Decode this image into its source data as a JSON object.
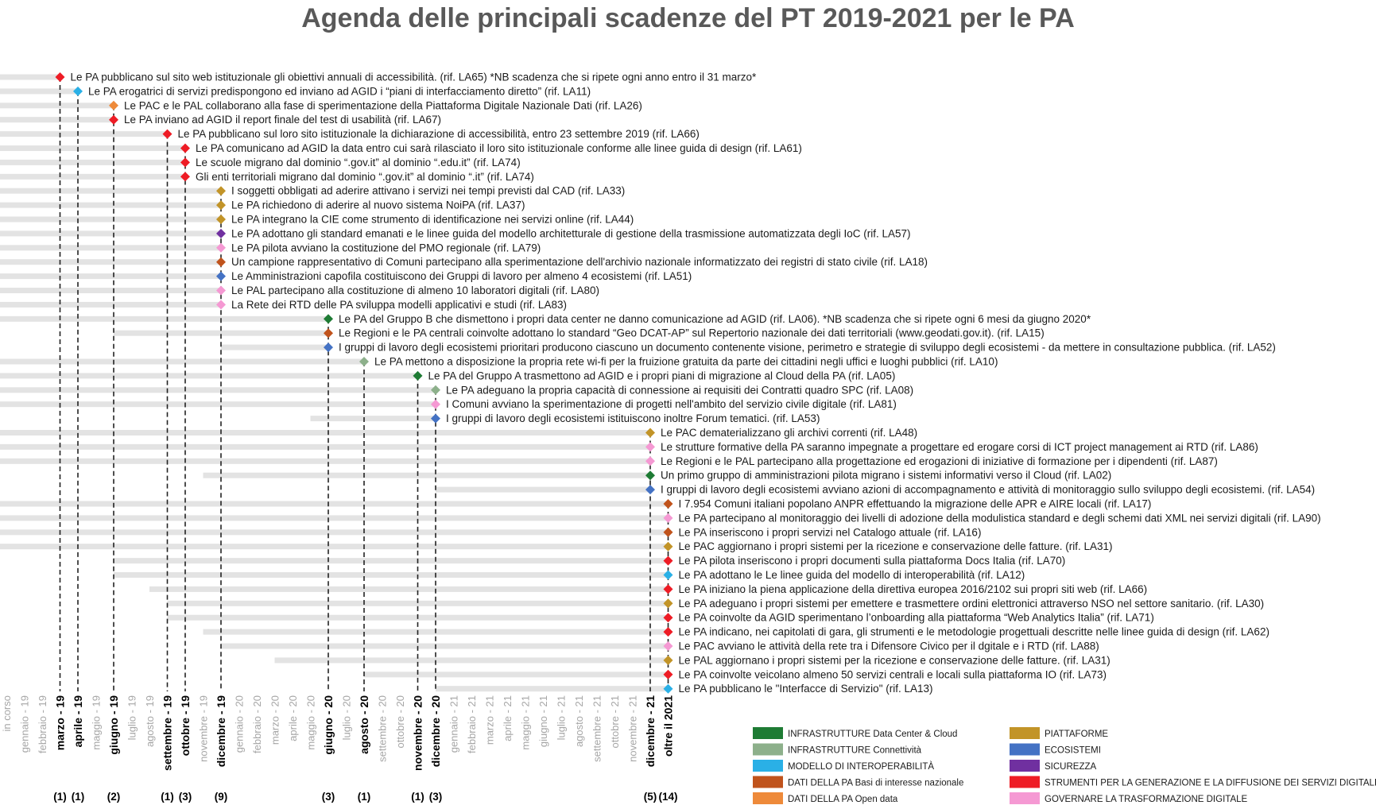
{
  "chart_data": {
    "type": "timeline",
    "title": "Agenda delle principali scadenze del PT 2019-2021 per le PA",
    "months": [
      "in corso",
      "gennaio - 19",
      "febbraio - 19",
      "marzo - 19",
      "aprile - 19",
      "maggio - 19",
      "giugno - 19",
      "luglio - 19",
      "agosto - 19",
      "settembre - 19",
      "ottobre - 19",
      "novembre - 19",
      "dicembre - 19",
      "gennaio - 20",
      "febbraio - 20",
      "marzo - 20",
      "aprile - 20",
      "maggio - 20",
      "giugno - 20",
      "luglio - 20",
      "agosto - 20",
      "settembre - 20",
      "ottobre - 20",
      "novembre - 20",
      "dicembre - 20",
      "gennaio - 21",
      "febbraio - 21",
      "marzo - 21",
      "aprile - 21",
      "maggio - 21",
      "giugno - 21",
      "luglio - 21",
      "agosto - 21",
      "settembre - 21",
      "ottobre - 21",
      "novembre - 21",
      "dicembre - 21",
      "oltre il 2021"
    ],
    "deadlines": [
      {
        "month": "marzo - 19",
        "count": "(1)"
      },
      {
        "month": "aprile - 19",
        "count": "(1)"
      },
      {
        "month": "giugno - 19",
        "count": "(2)"
      },
      {
        "month": "settembre - 19",
        "count": "(1)"
      },
      {
        "month": "ottobre - 19",
        "count": "(3)"
      },
      {
        "month": "dicembre - 19",
        "count": "(9)"
      },
      {
        "month": "giugno - 20",
        "count": "(3)"
      },
      {
        "month": "agosto - 20",
        "count": "(1)"
      },
      {
        "month": "novembre - 20",
        "count": "(1)"
      },
      {
        "month": "dicembre - 20",
        "count": "(3)"
      },
      {
        "month": "dicembre - 21",
        "count": "(5)"
      },
      {
        "month": "oltre il 2021",
        "count": "(14)"
      }
    ],
    "categories": [
      {
        "id": "dc",
        "label": "INFRASTRUTTURE  Data Center & Cloud",
        "color": "#1e7b34"
      },
      {
        "id": "conn",
        "label": "INFRASTRUTTURE  Connettività",
        "color": "#8db08b"
      },
      {
        "id": "interop",
        "label": "MODELLO DI INTEROPERABILITÀ",
        "color": "#2ab0e6"
      },
      {
        "id": "basi",
        "label": "DATI DELLA PA  Basi di interesse nazionale",
        "color": "#c0531c"
      },
      {
        "id": "open",
        "label": "DATI DELLA PA  Open data",
        "color": "#ee8a3a"
      },
      {
        "id": "piatt",
        "label": "PIATTAFORME",
        "color": "#c29428"
      },
      {
        "id": "eco",
        "label": "ECOSISTEMI",
        "color": "#4472c4"
      },
      {
        "id": "sic",
        "label": "SICUREZZA",
        "color": "#7030a0"
      },
      {
        "id": "strum",
        "label": "STRUMENTI PER LA GENERAZIONE E LA DIFFUSIONE DEI SERVIZI DIGITALI",
        "color": "#ee1c25"
      },
      {
        "id": "gov",
        "label": "GOVERNARE LA TRASFORMAZIONE DIGITALE",
        "color": "#f599d3"
      }
    ],
    "items": [
      {
        "month": 3,
        "start": 0,
        "cat": "strum",
        "text": "Le PA pubblicano sul sito web istituzionale gli obiettivi annuali di accessibilità. (rif. LA65) *NB scadenza che si ripete ogni anno entro il 31 marzo*"
      },
      {
        "month": 4,
        "start": 0,
        "cat": "interop",
        "text": "Le PA erogatrici di servizi predispongono ed inviano ad AGID i “piani di interfacciamento diretto” (rif. LA11)"
      },
      {
        "month": 6,
        "start": 0,
        "cat": "open",
        "text": "Le PAC e le PAL collaborano alla fase di sperimentazione della Piattaforma Digitale Nazionale Dati (rif. LA26)"
      },
      {
        "month": 6,
        "start": 0,
        "cat": "strum",
        "text": "Le PA inviano ad AGID il report finale del test di usabilità (rif. LA67)"
      },
      {
        "month": 9,
        "start": 0,
        "cat": "strum",
        "text": "Le PA pubblicano sul loro sito istituzionale la dichiarazione di accessibilità, entro 23 settembre 2019 (rif. LA66)"
      },
      {
        "month": 10,
        "start": 0,
        "cat": "strum",
        "text": "Le PA comunicano ad AGID la data entro cui sarà rilasciato il loro sito istituzionale conforme alle linee guida di design (rif. LA61)"
      },
      {
        "month": 10,
        "start": 0,
        "cat": "strum",
        "text": "Le scuole migrano dal dominio “.gov.it” al dominio “.edu.it” (rif. LA74)"
      },
      {
        "month": 10,
        "start": 0,
        "cat": "strum",
        "text": "Gli enti territoriali migrano dal dominio “.gov.it” al dominio “.it” (rif. LA74)"
      },
      {
        "month": 12,
        "start": 0,
        "cat": "piatt",
        "text": "I soggetti obbligati ad aderire attivano i servizi nei tempi previsti dal CAD (rif. LA33)"
      },
      {
        "month": 12,
        "start": 0,
        "cat": "piatt",
        "text": "Le PA richiedono di aderire al nuovo sistema NoiPA (rif. LA37)"
      },
      {
        "month": 12,
        "start": 0,
        "cat": "piatt",
        "text": "Le PA integrano la CIE come strumento di identificazione nei servizi online (rif. LA44)"
      },
      {
        "month": 12,
        "start": 0,
        "cat": "sic",
        "text": "Le PA adottano gli standard emanati e le linee guida del modello architetturale di gestione della trasmissione automatizzata degli IoC (rif. LA57)"
      },
      {
        "month": 12,
        "start": 0,
        "cat": "gov",
        "text": "Le PA pilota avviano la costituzione del PMO regionale (rif. LA79)"
      },
      {
        "month": 12,
        "start": 0,
        "cat": "basi",
        "text": "Un campione rappresentativo di Comuni partecipano alla sperimentazione dell'archivio nazionale informatizzato dei registri di stato civile (rif. LA18)"
      },
      {
        "month": 12,
        "start": 0,
        "cat": "eco",
        "text": "Le Amministrazioni capofila costituiscono dei Gruppi di lavoro per almeno 4 ecosistemi (rif. LA51)"
      },
      {
        "month": 12,
        "start": 0,
        "cat": "gov",
        "text": "Le PAL partecipano alla costituzione di almeno 10 laboratori digitali (rif. LA80)"
      },
      {
        "month": 12,
        "start": 0,
        "cat": "gov",
        "text": "La Rete dei RTD delle PA sviluppa modelli applicativi e studi (rif. LA83)"
      },
      {
        "month": 18,
        "start": 0,
        "cat": "dc",
        "text": "Le PA del Gruppo B che dismettono i propri data center ne danno comunicazione ad AGID (rif. LA06). *NB scadenza che si ripete ogni 6 mesi da giugno 2020*"
      },
      {
        "month": 18,
        "start": 6,
        "cat": "basi",
        "text": "Le Regioni e le PA centrali coinvolte adottano lo standard  “Geo DCAT-AP” sul Repertorio nazionale dei dati territoriali (www.geodati.gov.it). (rif. LA15)"
      },
      {
        "month": 18,
        "start": 12,
        "cat": "eco",
        "text": "I gruppi di lavoro degli ecosistemi prioritari producono ciascuno un documento contenente visione, perimetro e strategie di sviluppo degli ecosistemi - da mettere in consultazione pubblica. (rif. LA52)"
      },
      {
        "month": 20,
        "start": 0,
        "cat": "conn",
        "text": "Le PA mettono a disposizione la propria rete wi-fi per la fruizione gratuita da parte dei cittadini negli uffici e luoghi pubblici (rif. LA10)"
      },
      {
        "month": 23,
        "start": 0,
        "cat": "dc",
        "text": "Le PA del Gruppo A trasmettono ad AGID e i propri piani di migrazione al Cloud della PA (rif. LA05)"
      },
      {
        "month": 24,
        "start": 0,
        "cat": "conn",
        "text": "Le PA adeguano la propria capacità di connessione ai requisiti dei Contratti quadro SPC (rif. LA08)"
      },
      {
        "month": 24,
        "start": 0,
        "cat": "gov",
        "text": "I Comuni avviano la sperimentazione di progetti nell'ambito del servizio civile digitale (rif. LA81)"
      },
      {
        "month": 24,
        "start": 17,
        "cat": "eco",
        "text": "I gruppi di lavoro degli ecosistemi istituiscono inoltre Forum tematici. (rif. LA53)"
      },
      {
        "month": 36,
        "start": 0,
        "cat": "piatt",
        "text": "Le PAC dematerializzano gli archivi correnti (rif. LA48)"
      },
      {
        "month": 36,
        "start": 0,
        "cat": "gov",
        "text": "Le strutture formative della PA saranno impegnate a progettare ed erogare corsi di ICT project management ai RTD (rif. LA86)"
      },
      {
        "month": 36,
        "start": 0,
        "cat": "gov",
        "text": "Le Regioni e le PAL partecipano alla progettazione ed erogazioni di iniziative di formazione per i dipendenti (rif. LA87)"
      },
      {
        "month": 36,
        "start": 11,
        "cat": "dc",
        "text": "Un primo gruppo di amministrazioni pilota migrano i sistemi informativi verso il Cloud (rif. LA02)"
      },
      {
        "month": 36,
        "start": 24,
        "cat": "eco",
        "text": "I gruppi di lavoro degli ecosistemi avviano azioni di accompagnamento e attività di monitoraggio sullo sviluppo degli ecosistemi. (rif. LA54)"
      },
      {
        "month": 37,
        "start": 0,
        "cat": "basi",
        "text": "I 7.954 Comuni italiani popolano ANPR effettuando la migrazione delle APR e AIRE locali (rif. LA17)"
      },
      {
        "month": 37,
        "start": 0,
        "cat": "gov",
        "text": "Le PA partecipano al monitoraggio dei livelli di adozione della modulistica standard e degli schemi dati XML nei servizi digitali (rif. LA90)"
      },
      {
        "month": 37,
        "start": 0,
        "cat": "basi",
        "text": "Le PA inseriscono i propri servizi nel Catalogo attuale (rif. LA16)"
      },
      {
        "month": 37,
        "start": 0,
        "cat": "piatt",
        "text": "Le PAC aggiornano i propri sistemi per la ricezione e conservazione delle fatture. (rif. LA31)"
      },
      {
        "month": 37,
        "start": 6,
        "cat": "strum",
        "text": "Le PA pilota inseriscono i propri documenti sulla piattaforma Docs Italia (rif. LA70)"
      },
      {
        "month": 37,
        "start": 6,
        "cat": "interop",
        "text": "Le PA adottano le Le linee guida del modello di interoperabilità (rif. LA12)"
      },
      {
        "month": 37,
        "start": 8,
        "cat": "strum",
        "text": "Le PA iniziano la piena applicazione della direttiva europea 2016/2102 sui propri siti web (rif. LA66)"
      },
      {
        "month": 37,
        "start": 9,
        "cat": "piatt",
        "text": "Le PA adeguano i propri sistemi per emettere e trasmettere ordini elettronici attraverso NSO nel settore sanitario. (rif. LA30)"
      },
      {
        "month": 37,
        "start": 9,
        "cat": "strum",
        "text": "Le PA coinvolte da AGID sperimentano l’onboarding alla piattaforma “Web Analytics Italia” (rif. LA71)"
      },
      {
        "month": 37,
        "start": 11,
        "cat": "strum",
        "text": "Le PA indicano, nei capitolati di gara, gli strumenti e le metodologie progettuali descritte nelle linee guida di design (rif. LA62)"
      },
      {
        "month": 37,
        "start": 12,
        "cat": "gov",
        "text": "Le PAC avviano le attività della rete tra i Difensore Civico per il dgitale e i RTD (rif. LA88)"
      },
      {
        "month": 37,
        "start": 15,
        "cat": "piatt",
        "text": "Le PAL aggiornano i propri sistemi per la ricezione e conservazione delle fatture. (rif. LA31)"
      },
      {
        "month": 37,
        "start": 20,
        "cat": "strum",
        "text": "Le PA coinvolte veicolano almeno 50 servizi centrali e locali sulla piattaforma IO (rif. LA73)"
      },
      {
        "month": 37,
        "start": 24,
        "cat": "interop",
        "text": "Le PA pubblicano le \"Interfacce di Servizio\" (rif. LA13)"
      }
    ]
  }
}
